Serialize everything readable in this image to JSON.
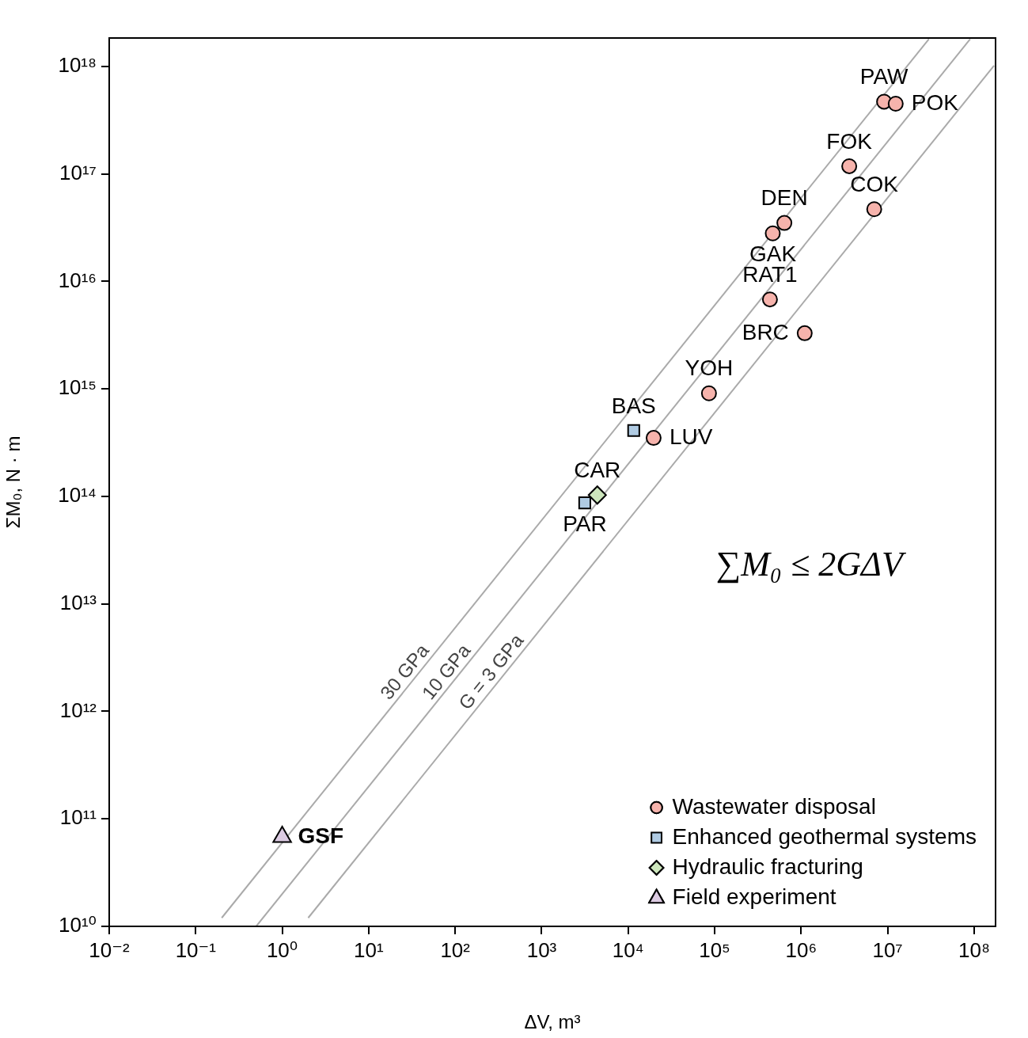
{
  "chart_data": {
    "type": "scatter",
    "xlabel": "ΔV, m³",
    "ylabel": "ΣM₀, N · m",
    "log": "xy",
    "grid": false,
    "legend": "bottom right",
    "xlim": [
      0.01,
      177000000.0
    ],
    "ylim": [
      10000000000.0,
      1.84e+18
    ],
    "xticks": [
      {
        "value": 0.01,
        "label": "10⁻²"
      },
      {
        "value": 0.1,
        "label": "10⁻¹"
      },
      {
        "value": 1,
        "label": "10⁰"
      },
      {
        "value": 10,
        "label": "10¹"
      },
      {
        "value": 100,
        "label": "10²"
      },
      {
        "value": 1000,
        "label": "10³"
      },
      {
        "value": 10000,
        "label": "10⁴"
      },
      {
        "value": 100000,
        "label": "10⁵"
      },
      {
        "value": 1000000,
        "label": "10⁶"
      },
      {
        "value": 10000000,
        "label": "10⁷"
      },
      {
        "value": 100000000,
        "label": "10⁸"
      }
    ],
    "yticks": [
      {
        "value": 10000000000.0,
        "label": "10¹⁰"
      },
      {
        "value": 100000000000.0,
        "label": "10¹¹"
      },
      {
        "value": 1000000000000.0,
        "label": "10¹²"
      },
      {
        "value": 10000000000000.0,
        "label": "10¹³"
      },
      {
        "value": 100000000000000.0,
        "label": "10¹⁴"
      },
      {
        "value": 1000000000000000.0,
        "label": "10¹⁵"
      },
      {
        "value": 1e+16,
        "label": "10¹⁶"
      },
      {
        "value": 1e+17,
        "label": "10¹⁷"
      },
      {
        "value": 1e+18,
        "label": "10¹⁸"
      }
    ],
    "series": [
      {
        "name": "Wastewater disposal",
        "color": "#f6b3ac",
        "marker": "circle",
        "x": [
          9100000,
          12400000,
          3600000,
          7000000,
          640000,
          470000,
          436000,
          1100000,
          86000,
          19700
        ],
        "values": [
          4.7e+17,
          4.5e+17,
          1.18e+17,
          4.7e+16,
          3.5e+16,
          2.8e+16,
          6800000000000000.0,
          3300000000000000.0,
          910000000000000.0,
          350000000000000.0
        ]
      },
      {
        "name": "Enhanced geothermal systems",
        "color": "#b0cbe3",
        "marker": "square",
        "x": [
          11600,
          3150
        ],
        "values": [
          410000000000000.0,
          87000000000000.0
        ]
      },
      {
        "name": "Hydraulic fracturing",
        "color": "#cde6bc",
        "marker": "diamond",
        "x": [
          4400
        ],
        "values": [
          103000000000000.0
        ]
      },
      {
        "name": "Field experiment",
        "color": "#dccbe2",
        "marker": "triangle",
        "x": [
          1
        ],
        "values": [
          68000000000.0
        ]
      },
      {
        "type": "line",
        "color": "#aaaaaa",
        "x": [
          0.2,
          30000000
        ],
        "values": [
          12000000000.0,
          1.8e+18
        ]
      },
      {
        "type": "line",
        "color": "#aaaaaa",
        "x": [
          0.5,
          90000000
        ],
        "values": [
          10000000000.0,
          1.8e+18
        ]
      },
      {
        "type": "line",
        "color": "#aaaaaa",
        "x": [
          2,
          170000000
        ],
        "values": [
          12000000000.0,
          1.02e+18
        ]
      }
    ],
    "annotations": [
      {
        "text": "30 GPa",
        "x": 33,
        "y": 2000000000000.0
      },
      {
        "text": "10 GPa",
        "x": 100,
        "y": 2000000000000.0
      },
      {
        "text": "G = 3 GPa",
        "x": 330,
        "y": 2000000000000.0
      },
      {
        "text": "PAW",
        "x": 9100000,
        "y": 4.7e+17
      },
      {
        "text": "POK",
        "x": 12400000,
        "y": 4.5e+17
      },
      {
        "text": "FOK",
        "x": 3600000,
        "y": 1.18e+17
      },
      {
        "text": "COK",
        "x": 7000000,
        "y": 4.7e+16
      },
      {
        "text": "DEN",
        "x": 640000,
        "y": 3.5e+16
      },
      {
        "text": "GAK",
        "x": 470000,
        "y": 2.8e+16
      },
      {
        "text": "RAT1",
        "x": 436000,
        "y": 6800000000000000.0
      },
      {
        "text": "BRC",
        "x": 1100000,
        "y": 3300000000000000.0
      },
      {
        "text": "YOH",
        "x": 86000,
        "y": 910000000000000.0
      },
      {
        "text": "LUV",
        "x": 19700,
        "y": 350000000000000.0
      },
      {
        "text": "BAS",
        "x": 11600,
        "y": 410000000000000.0
      },
      {
        "text": "CAR",
        "x": 4400,
        "y": 103000000000000.0
      },
      {
        "text": "PAR",
        "x": 3150,
        "y": 87000000000000.0
      },
      {
        "text": "GSF",
        "x": 1,
        "y": 68000000000.0
      },
      "∑M₀ ≤ 2GΔV"
    ]
  }
}
